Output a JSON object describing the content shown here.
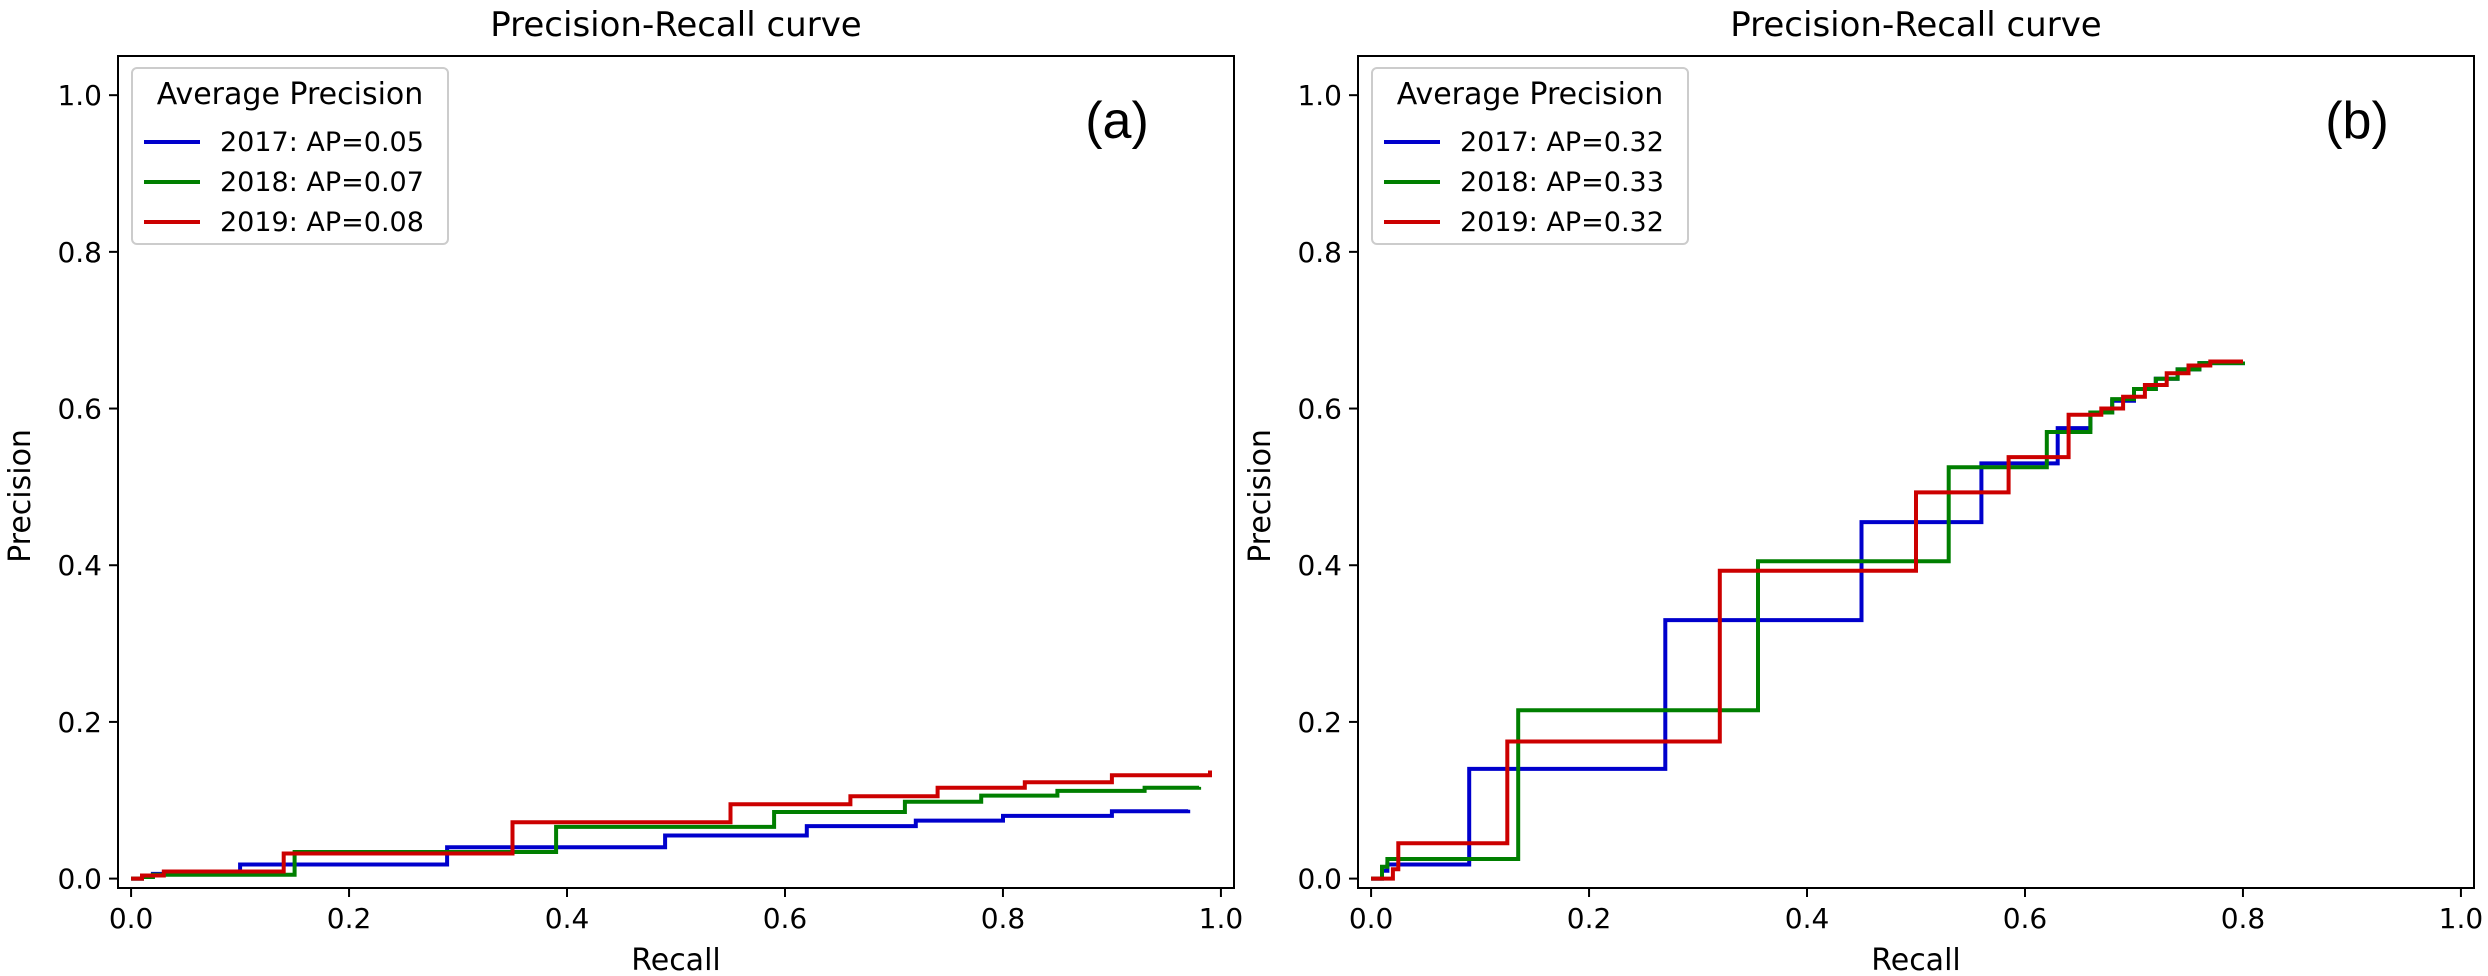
{
  "colors": {
    "blue": "#0000cc",
    "green": "#007f00",
    "red": "#cc0000"
  },
  "chart_data": [
    {
      "type": "line",
      "step": true,
      "title": "Precision-Recall curve",
      "panel_label": "(a)",
      "xlabel": "Recall",
      "ylabel": "Precision",
      "xlim": [
        0,
        1
      ],
      "ylim": [
        0,
        1.05
      ],
      "xticks": [
        "0.0",
        "0.2",
        "0.4",
        "0.6",
        "0.8",
        "1.0"
      ],
      "yticks": [
        "0.0",
        "0.2",
        "0.4",
        "0.6",
        "0.8",
        "1.0"
      ],
      "legend_title": "Average Precision",
      "legend_position": "upper left",
      "grid": false,
      "series": [
        {
          "name": "2017: AP=0.05",
          "color": "#0000cc",
          "x": [
            0,
            0.01,
            0.02,
            0.1,
            0.29,
            0.35,
            0.49,
            0.62,
            0.72,
            0.8,
            0.9,
            0.97
          ],
          "y": [
            0,
            0.003,
            0.006,
            0.018,
            0.04,
            0.04,
            0.055,
            0.067,
            0.074,
            0.08,
            0.086,
            0.088
          ]
        },
        {
          "name": "2018: AP=0.07",
          "color": "#007f00",
          "x": [
            0,
            0.01,
            0.02,
            0.15,
            0.39,
            0.59,
            0.71,
            0.78,
            0.85,
            0.93,
            0.98
          ],
          "y": [
            0,
            0.002,
            0.005,
            0.034,
            0.066,
            0.085,
            0.098,
            0.106,
            0.112,
            0.116,
            0.117
          ]
        },
        {
          "name": "2019: AP=0.08",
          "color": "#cc0000",
          "x": [
            0,
            0.01,
            0.03,
            0.14,
            0.35,
            0.55,
            0.66,
            0.74,
            0.82,
            0.9,
            0.99
          ],
          "y": [
            0,
            0.004,
            0.009,
            0.032,
            0.072,
            0.095,
            0.105,
            0.116,
            0.123,
            0.132,
            0.138
          ]
        }
      ]
    },
    {
      "type": "line",
      "step": true,
      "title": "Precision-Recall curve",
      "panel_label": "(b)",
      "xlabel": "Recall",
      "ylabel": "Precision",
      "xlim": [
        0,
        1
      ],
      "ylim": [
        0,
        1.05
      ],
      "xticks": [
        "0.0",
        "0.2",
        "0.4",
        "0.6",
        "0.8",
        "1.0"
      ],
      "yticks": [
        "0.0",
        "0.2",
        "0.4",
        "0.6",
        "0.8",
        "1.0"
      ],
      "legend_title": "Average Precision",
      "legend_position": "upper left",
      "grid": false,
      "series": [
        {
          "name": "2017: AP=0.32",
          "color": "#0000cc",
          "x": [
            0,
            0.01,
            0.015,
            0.09,
            0.27,
            0.45,
            0.56,
            0.63,
            0.66,
            0.68,
            0.7,
            0.72,
            0.74,
            0.76,
            0.8
          ],
          "y": [
            0,
            0.01,
            0.018,
            0.14,
            0.33,
            0.455,
            0.53,
            0.575,
            0.595,
            0.61,
            0.625,
            0.638,
            0.65,
            0.658,
            0.66
          ]
        },
        {
          "name": "2018: AP=0.33",
          "color": "#007f00",
          "x": [
            0,
            0.01,
            0.015,
            0.135,
            0.355,
            0.53,
            0.62,
            0.66,
            0.68,
            0.7,
            0.72,
            0.74,
            0.76,
            0.8
          ],
          "y": [
            0,
            0.015,
            0.025,
            0.215,
            0.405,
            0.525,
            0.57,
            0.595,
            0.612,
            0.625,
            0.638,
            0.65,
            0.658,
            0.66
          ]
        },
        {
          "name": "2019: AP=0.32",
          "color": "#cc0000",
          "x": [
            0,
            0.02,
            0.025,
            0.125,
            0.32,
            0.5,
            0.585,
            0.64,
            0.67,
            0.69,
            0.71,
            0.73,
            0.75,
            0.77,
            0.8
          ],
          "y": [
            0,
            0.012,
            0.045,
            0.175,
            0.393,
            0.493,
            0.538,
            0.592,
            0.6,
            0.615,
            0.63,
            0.645,
            0.655,
            0.66,
            0.66
          ]
        }
      ]
    }
  ]
}
